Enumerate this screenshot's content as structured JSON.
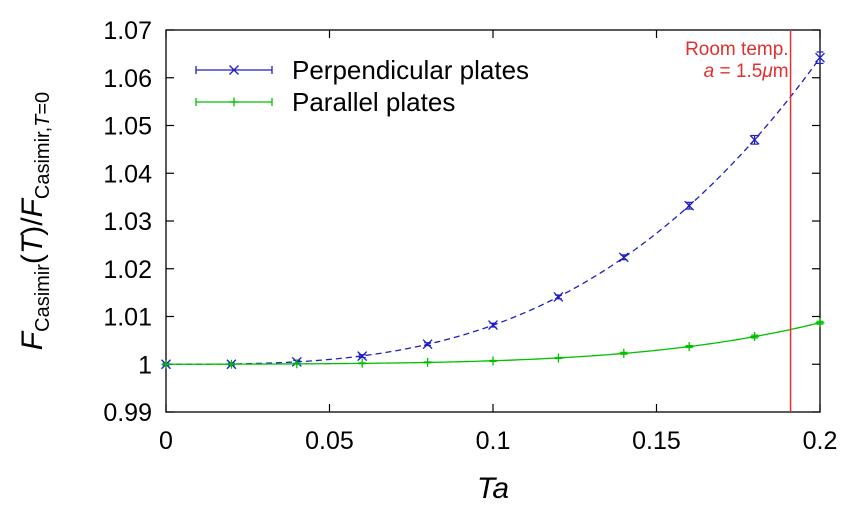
{
  "chart_data": {
    "type": "line",
    "x_label": "Ta",
    "y_label": {
      "f1": "F",
      "sub1": "Casimir",
      "arg": "(T)",
      "slash": "/",
      "f2": "F",
      "sub2": "Casimir,",
      "sub2_italic": "T",
      "sub2_tail": "=0"
    },
    "xlim": [
      0,
      0.2
    ],
    "ylim": [
      0.99,
      1.07
    ],
    "x_ticks": [
      "0",
      "0.05",
      "0.1",
      "0.15",
      "0.2"
    ],
    "x_tick_values": [
      0,
      0.05,
      0.1,
      0.15,
      0.2
    ],
    "y_ticks": [
      "0.99",
      "1",
      "1.01",
      "1.02",
      "1.03",
      "1.04",
      "1.05",
      "1.06",
      "1.07"
    ],
    "y_tick_values": [
      0.99,
      1.0,
      1.01,
      1.02,
      1.03,
      1.04,
      1.05,
      1.06,
      1.07
    ],
    "series": [
      {
        "name": "Perpendicular plates",
        "color": "#1f1fbf",
        "marker": "x",
        "x": [
          0,
          0.02,
          0.04,
          0.06,
          0.08,
          0.1,
          0.12,
          0.14,
          0.16,
          0.18,
          0.2
        ],
        "y": [
          1.0,
          1.0,
          1.0005,
          1.0017,
          1.0042,
          1.0082,
          1.0141,
          1.0224,
          1.0332,
          1.047,
          1.0642
        ],
        "err": [
          0.0002,
          0.0002,
          0.0003,
          0.0003,
          0.0003,
          0.0004,
          0.0004,
          0.0005,
          0.0007,
          0.0009,
          0.0012
        ],
        "fit": "dashed"
      },
      {
        "name": "Parallel plates",
        "color": "#00c000",
        "marker": "+",
        "x": [
          0,
          0.02,
          0.04,
          0.06,
          0.08,
          0.1,
          0.12,
          0.14,
          0.16,
          0.18,
          0.2
        ],
        "y": [
          1.0,
          1.0,
          1.0001,
          1.0002,
          1.0004,
          1.0007,
          1.0013,
          1.0023,
          1.0037,
          1.0058,
          1.0087
        ],
        "err": [
          0.0001,
          0.0001,
          0.0001,
          0.0001,
          0.0001,
          0.0001,
          0.0001,
          0.0002,
          0.0002,
          0.0003,
          0.0003
        ],
        "fit": "solid"
      }
    ],
    "vline": {
      "x": 0.191,
      "color": "#e03030",
      "label_line1": "Room temp.",
      "label_line2_var": "a",
      "label_line2_rest": " = 1.5",
      "label_line2_mu": "μ",
      "label_line2_unit": "m"
    },
    "legend_position": "top-left",
    "grid": false
  }
}
